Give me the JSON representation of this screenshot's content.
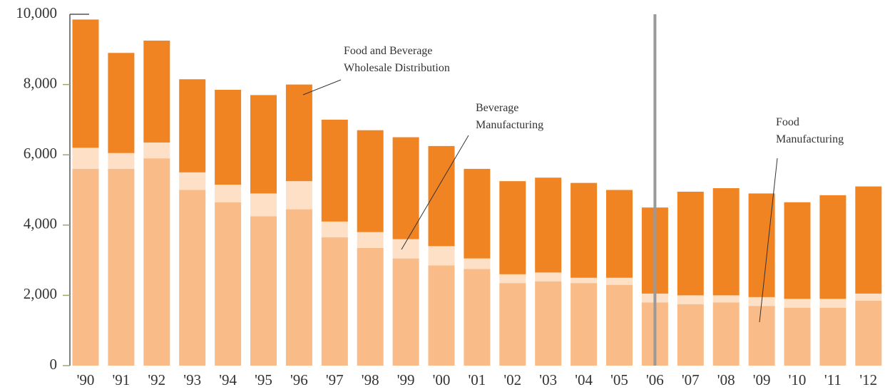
{
  "chart_data": {
    "type": "stacked-bar",
    "categories": [
      "'90",
      "'91",
      "'92",
      "'93",
      "'94",
      "'95",
      "'96",
      "'97",
      "'98",
      "'99",
      "'00",
      "'01",
      "'02",
      "'03",
      "'04",
      "'05",
      "'06",
      "'07",
      "'08",
      "'09",
      "'10",
      "'11",
      "'12"
    ],
    "series": [
      {
        "name": "Food Manufacturing",
        "color": "#f9bb87",
        "values": [
          5600,
          5600,
          5900,
          5000,
          4650,
          4250,
          4450,
          3650,
          3350,
          3050,
          2850,
          2750,
          2350,
          2400,
          2350,
          2300,
          1800,
          1750,
          1800,
          1700,
          1650,
          1650,
          1850
        ]
      },
      {
        "name": "Beverage Manufacturing",
        "color": "#fde0c6",
        "values": [
          600,
          450,
          450,
          500,
          500,
          650,
          800,
          450,
          450,
          550,
          550,
          300,
          250,
          250,
          150,
          200,
          250,
          250,
          200,
          250,
          250,
          250,
          200
        ]
      },
      {
        "name": "Food and Beverage Wholesale Distribution",
        "color": "#f08423",
        "values": [
          3650,
          2850,
          2900,
          2650,
          2700,
          2800,
          2750,
          2900,
          2900,
          2900,
          2850,
          2550,
          2650,
          2700,
          2700,
          2500,
          2450,
          2950,
          3050,
          2950,
          2750,
          2950,
          3050
        ]
      }
    ],
    "ylim": [
      0,
      10000
    ],
    "yticks": [
      0,
      {
        "value": 2000,
        "label": "2,000"
      },
      {
        "value": 4000,
        "label": "4,000"
      },
      {
        "value": 6000,
        "label": "6,000"
      },
      {
        "value": 8000,
        "label": "8,000"
      },
      {
        "value": 10000,
        "label": "10,000"
      }
    ]
  }
}
